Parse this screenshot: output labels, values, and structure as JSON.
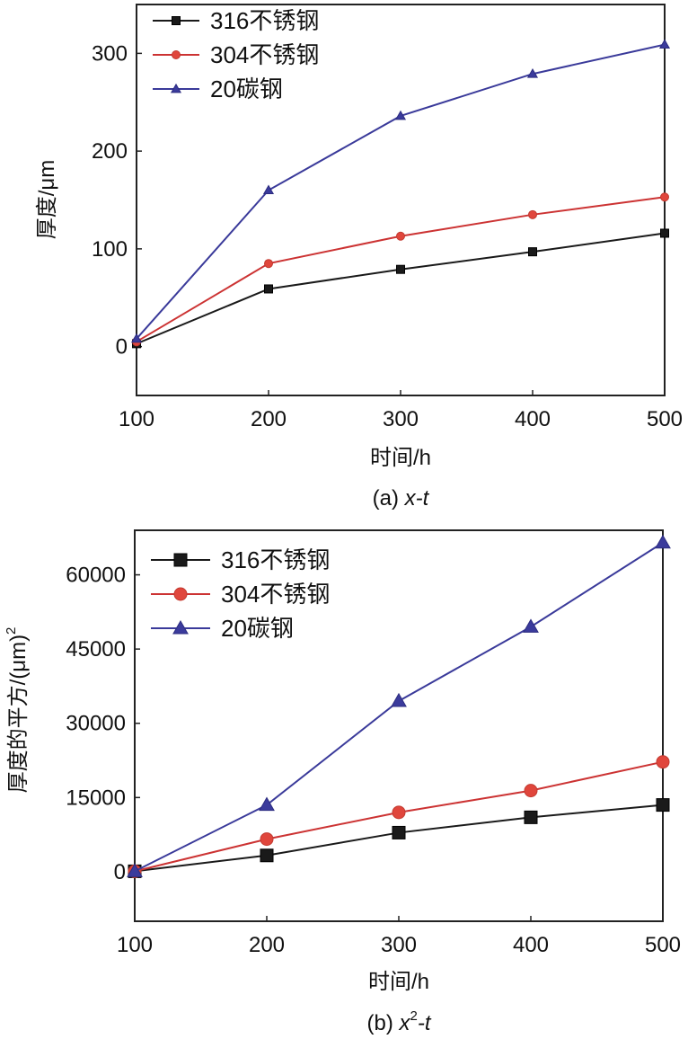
{
  "chart_data": [
    {
      "type": "line",
      "title": "",
      "caption_prefix": "(a) ",
      "caption_italic": "x-t",
      "xlabel": "时间/h",
      "ylabel": "厚度/μm",
      "xlim": [
        100,
        500
      ],
      "ylim": [
        -50,
        350
      ],
      "xticks": [
        100,
        200,
        300,
        400,
        500
      ],
      "yticks": [
        0,
        100,
        200,
        300
      ],
      "x": [
        100,
        200,
        300,
        400,
        500
      ],
      "legend_position": "top-left",
      "series": [
        {
          "name": "316不锈钢",
          "marker": "square",
          "color": "#1a1a1a",
          "values": [
            3,
            59,
            79,
            97,
            116
          ]
        },
        {
          "name": "304不锈钢",
          "marker": "circle",
          "color": "#cc3333",
          "values": [
            5,
            85,
            113,
            135,
            153
          ]
        },
        {
          "name": "20碳钢",
          "marker": "triangle",
          "color": "#3a3a9a",
          "values": [
            8,
            160,
            236,
            279,
            309
          ]
        }
      ]
    },
    {
      "type": "line",
      "title": "",
      "caption_prefix": "(b) ",
      "caption_italic": "x",
      "caption_sup": "2",
      "caption_italic2": "-t",
      "xlabel": "时间/h",
      "ylabel": "厚度的平方/(μm)",
      "ylabel_sup": "2",
      "xlim": [
        100,
        500
      ],
      "ylim": [
        -10000,
        69000
      ],
      "xticks": [
        100,
        200,
        300,
        400,
        500
      ],
      "yticks": [
        0,
        15000,
        30000,
        45000,
        60000
      ],
      "x": [
        100,
        200,
        300,
        400,
        500
      ],
      "legend_position": "top-left",
      "series": [
        {
          "name": "316不锈钢",
          "marker": "square",
          "color": "#1a1a1a",
          "values": [
            100,
            3300,
            7900,
            11000,
            13500
          ]
        },
        {
          "name": "304不锈钢",
          "marker": "circle",
          "color": "#cc3333",
          "values": [
            100,
            6600,
            12000,
            16400,
            22200
          ]
        },
        {
          "name": "20碳钢",
          "marker": "triangle",
          "color": "#3a3a9a",
          "values": [
            100,
            13500,
            34500,
            49500,
            66500
          ]
        }
      ]
    }
  ]
}
